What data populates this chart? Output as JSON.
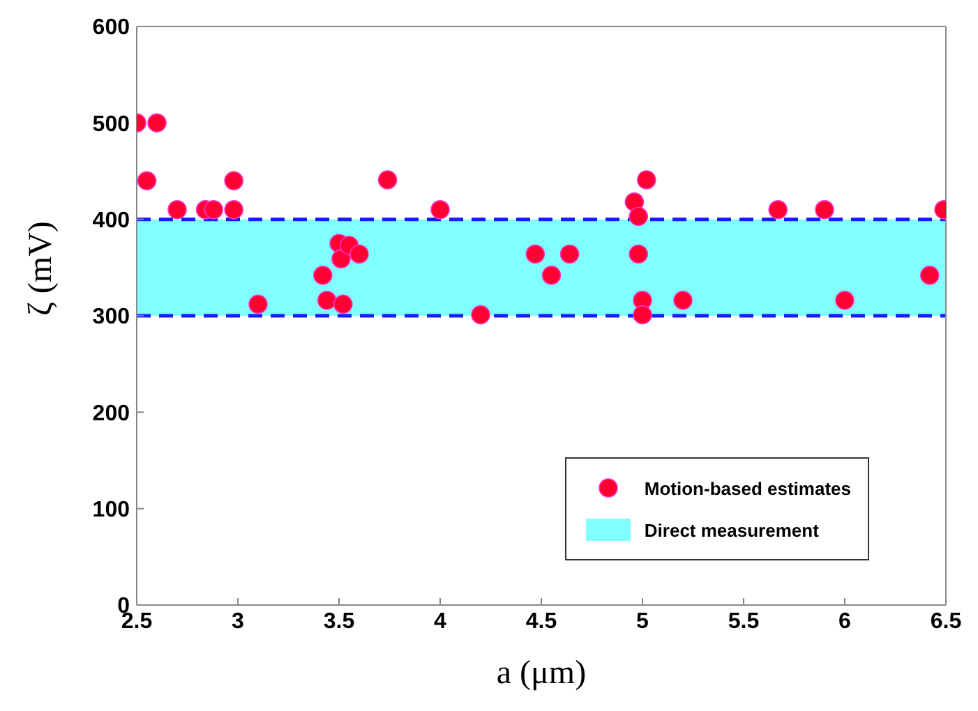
{
  "chart_data": {
    "type": "scatter",
    "xlabel": "a (μm)",
    "ylabel": "ζ (mV)",
    "xlim": [
      2.5,
      6.5
    ],
    "xticks": [
      2.5,
      3,
      3.5,
      4,
      4.5,
      5,
      5.5,
      6,
      6.5
    ],
    "ylim": [
      0,
      600
    ],
    "yticks": [
      0,
      100,
      200,
      300,
      400,
      500,
      600
    ],
    "x": [
      2.5,
      2.6,
      2.55,
      2.7,
      2.84,
      2.88,
      2.98,
      2.98,
      3.1,
      3.42,
      3.44,
      3.5,
      3.51,
      3.52,
      3.55,
      3.6,
      3.74,
      4.0,
      4.2,
      4.47,
      4.55,
      4.64,
      4.96,
      4.98,
      4.98,
      5.0,
      5.0,
      5.02,
      5.2,
      5.67,
      5.9,
      6.0,
      6.42,
      6.49
    ],
    "series": [
      {
        "name": "Motion-based estimates",
        "color": "#ff0033",
        "values": [
          500,
          500,
          440,
          410,
          410,
          410,
          440,
          410,
          312,
          342,
          316,
          375,
          359,
          312,
          373,
          364,
          441,
          410,
          301,
          364,
          342,
          364,
          418,
          403,
          364,
          316,
          301,
          441,
          316,
          410,
          410,
          316,
          342,
          410
        ]
      }
    ],
    "bands": [
      {
        "axis": "y",
        "from": 300,
        "to": 400,
        "label": "Direct measurement",
        "color": "#80ffff"
      }
    ],
    "ref_lines": [
      {
        "axis": "y",
        "value": 300,
        "color": "#1a1aff",
        "line_style": "dashed"
      },
      {
        "axis": "y",
        "value": 400,
        "color": "#1a1aff",
        "line_style": "dashed"
      }
    ],
    "marker": "circle",
    "legend": "bottom right"
  }
}
